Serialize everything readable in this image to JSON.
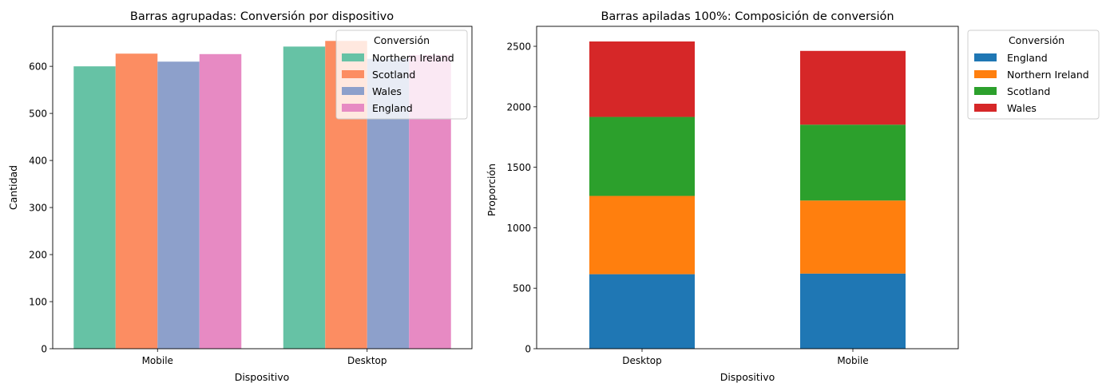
{
  "chart_data": [
    {
      "type": "bar",
      "title": "Barras agrupadas: Conversión por dispositivo",
      "xlabel": "Dispositivo",
      "ylabel": "Cantidad",
      "categories": [
        "Mobile",
        "Desktop"
      ],
      "ylim": [
        0,
        685
      ],
      "yticks": [
        0,
        100,
        200,
        300,
        400,
        500,
        600
      ],
      "legend_title": "Conversión",
      "legend_position": "top-right",
      "series": [
        {
          "name": "Northern Ireland",
          "color": "#66c2a5",
          "values": [
            600,
            642
          ]
        },
        {
          "name": "Scotland",
          "color": "#fc8d62",
          "values": [
            627,
            654
          ]
        },
        {
          "name": "Wales",
          "color": "#8da0cb",
          "values": [
            610,
            616
          ]
        },
        {
          "name": "England",
          "color": "#e78ac3",
          "values": [
            626,
            624
          ]
        }
      ]
    },
    {
      "type": "bar",
      "stacked": true,
      "title": "Barras apiladas 100%: Composición de conversión",
      "xlabel": "Dispositivo",
      "ylabel": "Proporción",
      "categories": [
        "Desktop",
        "Mobile"
      ],
      "ylim": [
        0,
        2665
      ],
      "yticks": [
        0,
        500,
        1000,
        1500,
        2000,
        2500
      ],
      "legend_title": "Conversión",
      "legend_position": "outside-right",
      "series": [
        {
          "name": "England",
          "color": "#1f77b4",
          "values": [
            616,
            621
          ]
        },
        {
          "name": "Northern Ireland",
          "color": "#ff7f0e",
          "values": [
            647,
            604
          ]
        },
        {
          "name": "Scotland",
          "color": "#2ca02c",
          "values": [
            653,
            627
          ]
        },
        {
          "name": "Wales",
          "color": "#d62728",
          "values": [
            624,
            610
          ]
        }
      ]
    }
  ]
}
